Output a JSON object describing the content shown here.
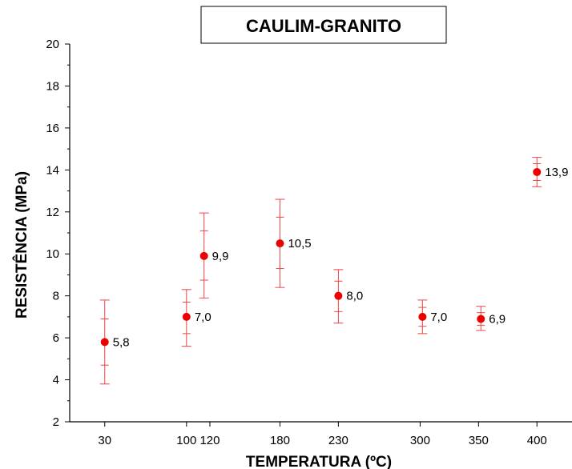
{
  "chart_data": {
    "type": "scatter",
    "title": "CAULIM-GRANITO",
    "xlabel": "TEMPERATURA (ºC)",
    "ylabel": "RESISTÊNCIA (MPa)",
    "xlim": [
      0,
      430
    ],
    "ylim": [
      2,
      20
    ],
    "x_ticks": [
      30,
      100,
      120,
      180,
      230,
      300,
      350,
      400
    ],
    "x_tick_labels": [
      "30",
      "100",
      "120",
      "180",
      "230",
      "300",
      "350",
      "400"
    ],
    "y_ticks": [
      2,
      4,
      6,
      8,
      10,
      12,
      14,
      16,
      18,
      20
    ],
    "y_tick_labels": [
      "2",
      "4",
      "6",
      "8",
      "10",
      "12",
      "14",
      "16",
      "18",
      "20"
    ],
    "grid": false,
    "marker_color": "#ee0000",
    "error_bar_color": "#ee4444",
    "points": [
      {
        "x": 30,
        "y": 5.8,
        "label": "5,8",
        "err_outer": [
          3.8,
          7.8
        ],
        "err_inner": [
          4.7,
          6.9
        ]
      },
      {
        "x": 100,
        "y": 7.0,
        "label": "7,0",
        "err_outer": [
          5.6,
          8.3
        ],
        "err_inner": [
          6.2,
          7.7
        ]
      },
      {
        "x": 115,
        "y": 9.9,
        "label": "9,9",
        "err_outer": [
          7.9,
          11.95
        ],
        "err_inner": [
          8.75,
          11.1
        ]
      },
      {
        "x": 180,
        "y": 10.5,
        "label": "10,5",
        "err_outer": [
          8.4,
          12.6
        ],
        "err_inner": [
          9.3,
          11.75
        ]
      },
      {
        "x": 230,
        "y": 8.0,
        "label": "8,0",
        "err_outer": [
          6.7,
          9.25
        ],
        "err_inner": [
          7.25,
          8.7
        ]
      },
      {
        "x": 302,
        "y": 7.0,
        "label": "7,0",
        "err_outer": [
          6.2,
          7.8
        ],
        "err_inner": [
          6.55,
          7.45
        ]
      },
      {
        "x": 352,
        "y": 6.9,
        "label": "6,9",
        "err_outer": [
          6.35,
          7.5
        ],
        "err_inner": [
          6.6,
          7.2
        ]
      },
      {
        "x": 400,
        "y": 13.9,
        "label": "13,9",
        "err_outer": [
          13.2,
          14.6
        ],
        "err_inner": [
          13.5,
          14.3
        ]
      }
    ]
  }
}
